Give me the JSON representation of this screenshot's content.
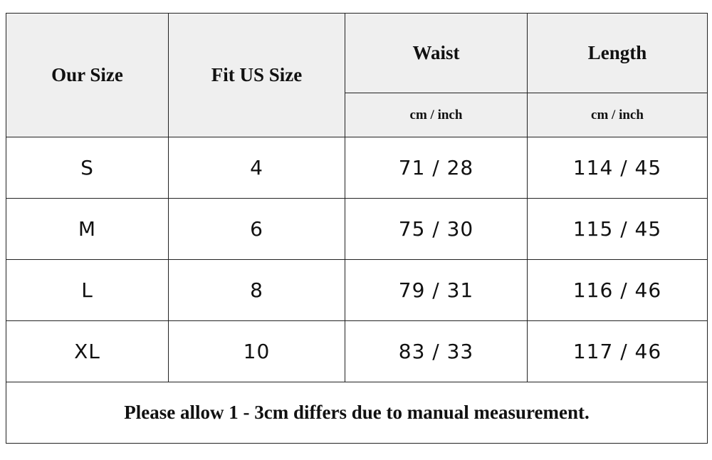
{
  "header": {
    "columns": [
      "Our Size",
      "Fit US Size",
      "Waist",
      "Length"
    ],
    "units": [
      "cm / inch",
      "cm / inch"
    ]
  },
  "table": {
    "rows": [
      [
        "S",
        "4",
        "71 / 28",
        "114 / 45"
      ],
      [
        "M",
        "6",
        "75 / 30",
        "115 / 45"
      ],
      [
        "L",
        "8",
        "79 / 31",
        "116 / 46"
      ],
      [
        "XL",
        "10",
        "83 / 33",
        "117 / 46"
      ]
    ]
  },
  "note": "Please allow 1 - 3cm differs due to manual measurement."
}
